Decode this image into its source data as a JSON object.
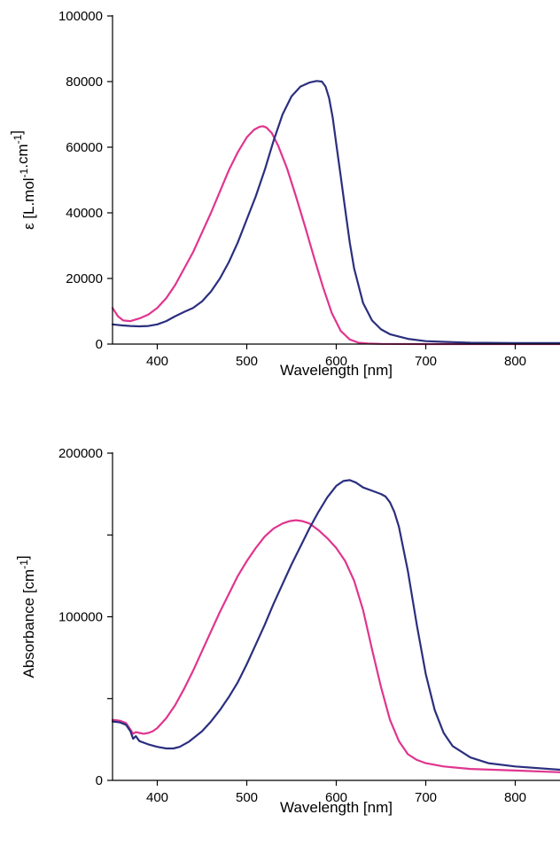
{
  "chart_data": [
    {
      "type": "line",
      "title": "",
      "xlabel": "Wavelength [nm]",
      "ylabel": "ε [L.mol-1.cm-1]",
      "ylabel_parts": {
        "base1": "ε [L.mol",
        "sup1": "-1",
        "mid": ".cm",
        "sup2": "-1",
        "end": "]"
      },
      "xlim": [
        350,
        850
      ],
      "ylim": [
        0,
        100000
      ],
      "xticks": [
        400,
        500,
        600,
        700,
        800
      ],
      "yticks": [
        0,
        20000,
        40000,
        60000,
        80000,
        100000
      ],
      "xtick_labels": [
        "400",
        "500",
        "600",
        "700",
        "800"
      ],
      "ytick_labels": [
        "0",
        "20000",
        "40000",
        "60000",
        "80000",
        "100000"
      ],
      "grid": false,
      "series": [
        {
          "color": "#e0358f",
          "x": [
            350,
            356,
            362,
            370,
            380,
            390,
            400,
            410,
            420,
            430,
            440,
            450,
            460,
            470,
            480,
            490,
            500,
            508,
            514,
            518,
            522,
            528,
            535,
            545,
            555,
            565,
            575,
            585,
            595,
            605,
            615,
            625,
            635,
            650,
            700,
            800,
            850
          ],
          "y": [
            11000,
            8500,
            7200,
            7000,
            7800,
            9000,
            11000,
            14000,
            18000,
            23000,
            28000,
            34000,
            40000,
            46500,
            53000,
            58500,
            63000,
            65300,
            66200,
            66400,
            66000,
            64300,
            60500,
            53500,
            45000,
            36000,
            26500,
            17500,
            9500,
            4000,
            1400,
            400,
            150,
            50,
            0,
            0,
            0
          ]
        },
        {
          "color": "#2b2f7e",
          "x": [
            350,
            360,
            370,
            380,
            390,
            400,
            410,
            420,
            430,
            440,
            450,
            460,
            470,
            480,
            490,
            500,
            510,
            520,
            530,
            540,
            550,
            560,
            570,
            578,
            584,
            588,
            592,
            596,
            600,
            605,
            610,
            615,
            620,
            630,
            640,
            650,
            660,
            680,
            700,
            750,
            800,
            850
          ],
          "y": [
            6000,
            5700,
            5500,
            5400,
            5500,
            6000,
            7000,
            8500,
            9800,
            11000,
            13000,
            16000,
            20000,
            25000,
            31000,
            38000,
            45000,
            53000,
            62000,
            70000,
            75500,
            78500,
            79700,
            80200,
            80000,
            78500,
            75000,
            69000,
            61000,
            51000,
            41000,
            31000,
            23000,
            12500,
            7200,
            4500,
            3000,
            1600,
            900,
            400,
            300,
            300
          ]
        }
      ]
    },
    {
      "type": "line",
      "title": "",
      "xlabel": "Wavelength [nm]",
      "ylabel": "Absorbance [cm-1]",
      "ylabel_parts": {
        "base1": "Absorbance [cm",
        "sup1": "-1",
        "mid": "",
        "sup2": "",
        "end": "]"
      },
      "xlim": [
        350,
        850
      ],
      "ylim": [
        0,
        200000
      ],
      "xticks": [
        400,
        500,
        600,
        700,
        800
      ],
      "yticks": [
        0,
        50000,
        100000,
        150000,
        200000
      ],
      "xtick_labels": [
        "400",
        "500",
        "600",
        "700",
        "800"
      ],
      "ytick_labels": [
        "0",
        "",
        "100000",
        "",
        "200000"
      ],
      "grid": false,
      "series": [
        {
          "color": "#e0358f",
          "x": [
            350,
            358,
            365,
            370,
            373,
            376,
            380,
            385,
            390,
            395,
            400,
            410,
            420,
            430,
            440,
            450,
            460,
            470,
            480,
            490,
            500,
            510,
            520,
            530,
            540,
            548,
            555,
            562,
            570,
            580,
            590,
            600,
            610,
            620,
            630,
            640,
            650,
            660,
            670,
            680,
            690,
            700,
            720,
            750,
            800,
            850
          ],
          "y": [
            37000,
            36500,
            35000,
            31000,
            28500,
            29500,
            29000,
            28500,
            29000,
            30000,
            32000,
            38000,
            46000,
            56000,
            67000,
            79000,
            91000,
            103000,
            114000,
            125000,
            134000,
            142000,
            149000,
            154000,
            157000,
            158500,
            159000,
            158500,
            157000,
            153000,
            148000,
            142000,
            134000,
            122000,
            104000,
            80000,
            57000,
            37000,
            24000,
            16000,
            12500,
            10500,
            8500,
            7000,
            6000,
            5000
          ]
        },
        {
          "color": "#2b2f7e",
          "x": [
            350,
            358,
            365,
            370,
            373,
            376,
            380,
            390,
            400,
            410,
            418,
            425,
            435,
            450,
            460,
            470,
            480,
            490,
            500,
            510,
            520,
            530,
            540,
            550,
            560,
            570,
            580,
            590,
            600,
            608,
            615,
            622,
            630,
            640,
            650,
            655,
            660,
            665,
            670,
            680,
            690,
            700,
            710,
            720,
            730,
            750,
            770,
            800,
            850
          ],
          "y": [
            36000,
            35500,
            34000,
            30000,
            25500,
            27000,
            24000,
            22000,
            20500,
            19500,
            19500,
            20500,
            23500,
            30000,
            36000,
            43000,
            51000,
            60000,
            71000,
            83000,
            95000,
            108000,
            120000,
            132000,
            143000,
            154000,
            164000,
            173000,
            180000,
            183000,
            183500,
            182000,
            179000,
            177000,
            175000,
            173500,
            170000,
            164000,
            155000,
            128000,
            95000,
            65000,
            43000,
            29000,
            21000,
            14000,
            10500,
            8500,
            6500
          ]
        }
      ]
    }
  ]
}
